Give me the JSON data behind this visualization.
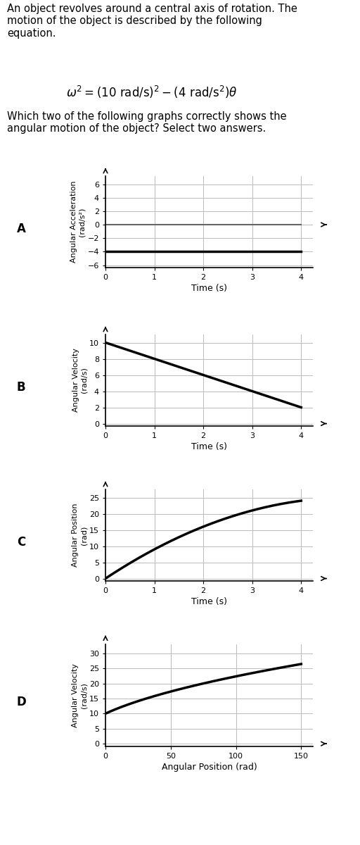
{
  "text_intro": "An object revolves around a central axis of rotation. The\nmotion of the object is described by the following\nequation.",
  "equation_text": "$\\omega^2 = (10\\ \\mathrm{rad/s})^2 - (4\\ \\mathrm{rad/s^2})\\theta$",
  "question": "Which two of the following graphs correctly shows the\nangular motion of the object? Select two answers.",
  "bg_color": "#ffffff",
  "grid_color": "#bbbbbb",
  "label_A": "A",
  "label_B": "B",
  "label_C": "C",
  "label_D": "D",
  "graph_A": {
    "ylabel": "Angular Acceleration\n(rad/s²)",
    "xlabel": "Time (s)",
    "xlim": [
      0,
      4
    ],
    "ylim": [
      -6,
      6
    ],
    "yticks": [
      -6,
      -4,
      -2,
      0,
      2,
      4,
      6
    ],
    "xticks": [
      0,
      1,
      2,
      3,
      4
    ],
    "const_line_y": -4,
    "zero_line_y": 0
  },
  "graph_B": {
    "ylabel": "Angular Velocity\n(rad/s)",
    "xlabel": "Time (s)",
    "xlim": [
      0,
      4
    ],
    "ylim": [
      0,
      10
    ],
    "yticks": [
      0,
      2,
      4,
      6,
      8,
      10
    ],
    "xticks": [
      0,
      1,
      2,
      3,
      4
    ],
    "x_start": 0,
    "y_start": 10,
    "x_end": 4,
    "y_end": 2
  },
  "graph_C": {
    "ylabel": "Angular Position\n(rad)",
    "xlabel": "Time (s)",
    "xlim": [
      0,
      4
    ],
    "ylim": [
      0,
      25
    ],
    "yticks": [
      0,
      5,
      10,
      15,
      20,
      25
    ],
    "xticks": [
      0,
      1,
      2,
      3,
      4
    ]
  },
  "graph_D": {
    "ylabel": "Angular Velocity\n(rad/s)",
    "xlabel": "Angular Position (rad)",
    "xlim": [
      0,
      150
    ],
    "ylim": [
      0,
      30
    ],
    "yticks": [
      0,
      5,
      10,
      15,
      20,
      25,
      30
    ],
    "xticks": [
      0,
      50,
      100,
      150
    ]
  }
}
